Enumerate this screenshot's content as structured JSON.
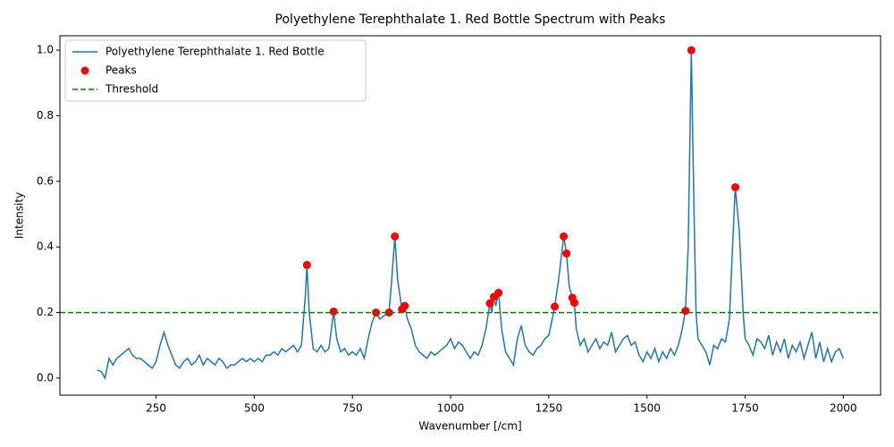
{
  "chart_data": {
    "type": "line",
    "title": "Polyethylene Terephthalate 1. Red Bottle Spectrum with Peaks",
    "x_label": "Wavenumber [/cm]",
    "y_label": "Intensity",
    "xlim": [
      5,
      2095
    ],
    "ylim": [
      -0.052,
      1.044
    ],
    "xticks": [
      250,
      500,
      750,
      1000,
      1250,
      1500,
      1750,
      2000
    ],
    "yticks": [
      {
        "value": 0,
        "label": "0.0"
      },
      0.2,
      0.4,
      0.6,
      0.8,
      {
        "value": 1,
        "label": "1.0"
      }
    ],
    "legend": "upper left",
    "series": [
      {
        "name": "Polyethylene Terephthalate 1. Red Bottle",
        "color": "#1f77b4",
        "type": "line",
        "x": [
          100,
          110,
          120,
          130,
          140,
          150,
          160,
          170,
          180,
          190,
          200,
          210,
          220,
          230,
          240,
          250,
          260,
          270,
          280,
          290,
          300,
          310,
          320,
          330,
          340,
          350,
          360,
          370,
          380,
          390,
          400,
          410,
          420,
          430,
          440,
          450,
          460,
          470,
          480,
          490,
          500,
          510,
          520,
          530,
          540,
          550,
          560,
          570,
          580,
          590,
          600,
          610,
          620,
          630,
          634,
          640,
          650,
          660,
          670,
          680,
          690,
          702,
          710,
          720,
          730,
          740,
          750,
          760,
          770,
          780,
          790,
          800,
          810,
          820,
          830,
          843,
          850,
          858,
          865,
          876,
          883,
          890,
          900,
          910,
          920,
          930,
          940,
          950,
          960,
          970,
          980,
          990,
          1000,
          1010,
          1020,
          1030,
          1040,
          1050,
          1060,
          1070,
          1080,
          1090,
          1100,
          1105,
          1110,
          1115,
          1122,
          1130,
          1140,
          1150,
          1160,
          1170,
          1180,
          1190,
          1200,
          1210,
          1220,
          1230,
          1240,
          1250,
          1265,
          1275,
          1288,
          1295,
          1302,
          1310,
          1315,
          1320,
          1330,
          1340,
          1350,
          1360,
          1370,
          1380,
          1390,
          1400,
          1410,
          1420,
          1430,
          1440,
          1450,
          1460,
          1470,
          1480,
          1490,
          1500,
          1510,
          1520,
          1530,
          1540,
          1550,
          1560,
          1570,
          1580,
          1590,
          1598,
          1605,
          1613,
          1620,
          1625,
          1630,
          1640,
          1650,
          1660,
          1670,
          1680,
          1690,
          1700,
          1710,
          1718,
          1725,
          1735,
          1745,
          1750,
          1760,
          1770,
          1780,
          1790,
          1800,
          1810,
          1820,
          1830,
          1840,
          1850,
          1860,
          1870,
          1880,
          1890,
          1900,
          1910,
          1920,
          1930,
          1940,
          1950,
          1960,
          1970,
          1980,
          1990,
          2000
        ],
        "values": [
          0.025,
          0.02,
          0.0,
          0.06,
          0.04,
          0.06,
          0.07,
          0.08,
          0.09,
          0.07,
          0.06,
          0.06,
          0.05,
          0.04,
          0.03,
          0.05,
          0.1,
          0.14,
          0.1,
          0.07,
          0.04,
          0.03,
          0.05,
          0.06,
          0.04,
          0.05,
          0.07,
          0.04,
          0.06,
          0.05,
          0.04,
          0.06,
          0.05,
          0.03,
          0.04,
          0.04,
          0.05,
          0.06,
          0.05,
          0.06,
          0.05,
          0.06,
          0.05,
          0.07,
          0.07,
          0.08,
          0.07,
          0.09,
          0.08,
          0.09,
          0.1,
          0.08,
          0.1,
          0.25,
          0.345,
          0.2,
          0.09,
          0.08,
          0.1,
          0.08,
          0.09,
          0.203,
          0.12,
          0.08,
          0.09,
          0.07,
          0.08,
          0.07,
          0.09,
          0.06,
          0.12,
          0.17,
          0.2,
          0.18,
          0.19,
          0.2,
          0.3,
          0.432,
          0.3,
          0.21,
          0.22,
          0.18,
          0.15,
          0.1,
          0.08,
          0.07,
          0.06,
          0.08,
          0.07,
          0.08,
          0.09,
          0.1,
          0.12,
          0.09,
          0.11,
          0.1,
          0.08,
          0.06,
          0.08,
          0.07,
          0.1,
          0.15,
          0.228,
          0.2,
          0.248,
          0.22,
          0.26,
          0.15,
          0.08,
          0.06,
          0.04,
          0.12,
          0.16,
          0.1,
          0.08,
          0.07,
          0.09,
          0.1,
          0.12,
          0.13,
          0.218,
          0.3,
          0.432,
          0.38,
          0.28,
          0.245,
          0.23,
          0.15,
          0.1,
          0.12,
          0.08,
          0.1,
          0.12,
          0.09,
          0.11,
          0.1,
          0.14,
          0.08,
          0.1,
          0.12,
          0.13,
          0.1,
          0.11,
          0.07,
          0.05,
          0.08,
          0.06,
          0.09,
          0.05,
          0.08,
          0.06,
          0.09,
          0.07,
          0.1,
          0.15,
          0.205,
          0.4,
          1.0,
          0.5,
          0.2,
          0.12,
          0.1,
          0.08,
          0.04,
          0.1,
          0.09,
          0.12,
          0.11,
          0.18,
          0.4,
          0.582,
          0.45,
          0.2,
          0.12,
          0.1,
          0.07,
          0.12,
          0.11,
          0.09,
          0.13,
          0.07,
          0.11,
          0.08,
          0.12,
          0.06,
          0.1,
          0.08,
          0.11,
          0.06,
          0.1,
          0.14,
          0.06,
          0.11,
          0.05,
          0.09,
          0.05,
          0.08,
          0.09,
          0.06
        ]
      },
      {
        "name": "Peaks",
        "color": "#ff0000",
        "type": "scatter",
        "x": [
          634,
          702,
          810,
          843,
          858,
          876,
          883,
          1100,
          1110,
          1122,
          1265,
          1288,
          1295,
          1310,
          1315,
          1598,
          1613,
          1725
        ],
        "values": [
          0.345,
          0.203,
          0.2,
          0.2,
          0.432,
          0.21,
          0.22,
          0.228,
          0.248,
          0.26,
          0.218,
          0.432,
          0.38,
          0.245,
          0.23,
          0.205,
          1.0,
          0.582
        ]
      }
    ],
    "threshold": {
      "name": "Threshold",
      "value": 0.2,
      "color": "#008000"
    }
  }
}
